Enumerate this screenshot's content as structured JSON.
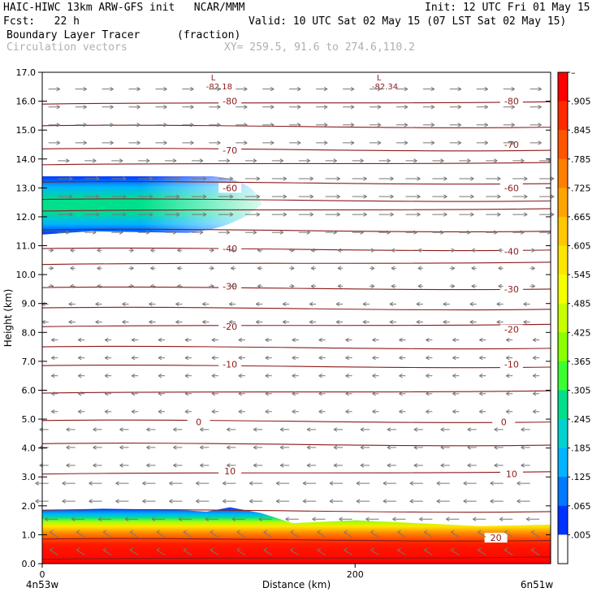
{
  "header": {
    "model": "HAIC-HIWC 13km ARW-GFS init   NCAR/MMM",
    "init": "Init: 12 UTC Fri 01 May 15",
    "fcst": "Fcst:   22 h",
    "valid": "Valid: 10 UTC Sat 02 May 15 (07 LST Sat 02 May 15)",
    "field1": "Boundary Layer Tracer",
    "field1_units": "(fraction)",
    "field2": "Circulation vectors",
    "xsect": "XY= 259.5, 91.6 to 274.6,110.2"
  },
  "chart_data": {
    "type": "heatmap",
    "xlabel": "Distance (km)",
    "ylabel": "Height (km)",
    "x_ticks": [
      {
        "value": 0,
        "label": "0"
      },
      {
        "value": 200,
        "label": "200"
      }
    ],
    "x_range": [
      0,
      325
    ],
    "x_end_labels": {
      "left": "4n53w",
      "right": "6n51w"
    },
    "y_ticks": [
      "0.0",
      "1.0",
      "2.0",
      "3.0",
      "4.0",
      "5.0",
      "6.0",
      "7.0",
      "8.0",
      "9.0",
      "10.0",
      "11.0",
      "12.0",
      "13.0",
      "14.0",
      "15.0",
      "16.0",
      "17.0"
    ],
    "ylim": [
      0,
      17
    ],
    "colorbar": {
      "labels": [
        "–",
        ".905",
        ".845",
        ".785",
        ".725",
        ".665",
        ".605",
        ".545",
        ".485",
        ".425",
        ".365",
        ".305",
        ".245",
        ".185",
        ".125",
        ".065",
        ".005"
      ],
      "colors": [
        "#ff0000",
        "#ff2a00",
        "#ff5500",
        "#ff7f00",
        "#ffa500",
        "#ffc800",
        "#ffe600",
        "#f5ff00",
        "#c8ff00",
        "#8cff00",
        "#3cff32",
        "#00e08c",
        "#00d2d2",
        "#00b4ff",
        "#0078ff",
        "#0032ff",
        "#ffffff"
      ]
    },
    "contours": {
      "color": "#8b1a1a",
      "labels": [
        {
          "text": "-80",
          "y": 16.0
        },
        {
          "text": "-80",
          "y": 16.0
        },
        {
          "text": "-70",
          "y": 14.3
        },
        {
          "text": "-70",
          "y": 14.5
        },
        {
          "text": "-60",
          "y": 13.0
        },
        {
          "text": "-60",
          "y": 13.0
        },
        {
          "text": "-40",
          "y": 10.9
        },
        {
          "text": "-40",
          "y": 10.8
        },
        {
          "text": "-30",
          "y": 9.6
        },
        {
          "text": "-30",
          "y": 9.5
        },
        {
          "text": "-20",
          "y": 8.2
        },
        {
          "text": "-20",
          "y": 8.1
        },
        {
          "text": "-10",
          "y": 6.9
        },
        {
          "text": "-10",
          "y": 6.9
        },
        {
          "text": "0",
          "y": 4.9
        },
        {
          "text": "0",
          "y": 4.9
        },
        {
          "text": "10",
          "y": 3.2
        },
        {
          "text": "10",
          "y": 3.1
        },
        {
          "text": "20",
          "y": 0.9
        }
      ],
      "lows": [
        {
          "text": "L",
          "value": "-82.18",
          "x": 112
        },
        {
          "text": "L",
          "value": "-82.34",
          "x": 218
        }
      ]
    },
    "tracer_regions": [
      {
        "name": "upper",
        "ybot": 11.5,
        "ytop": 13.4,
        "xend": 140
      },
      {
        "name": "boundary",
        "ybot": 0.0,
        "ytop": 1.9
      }
    ]
  }
}
